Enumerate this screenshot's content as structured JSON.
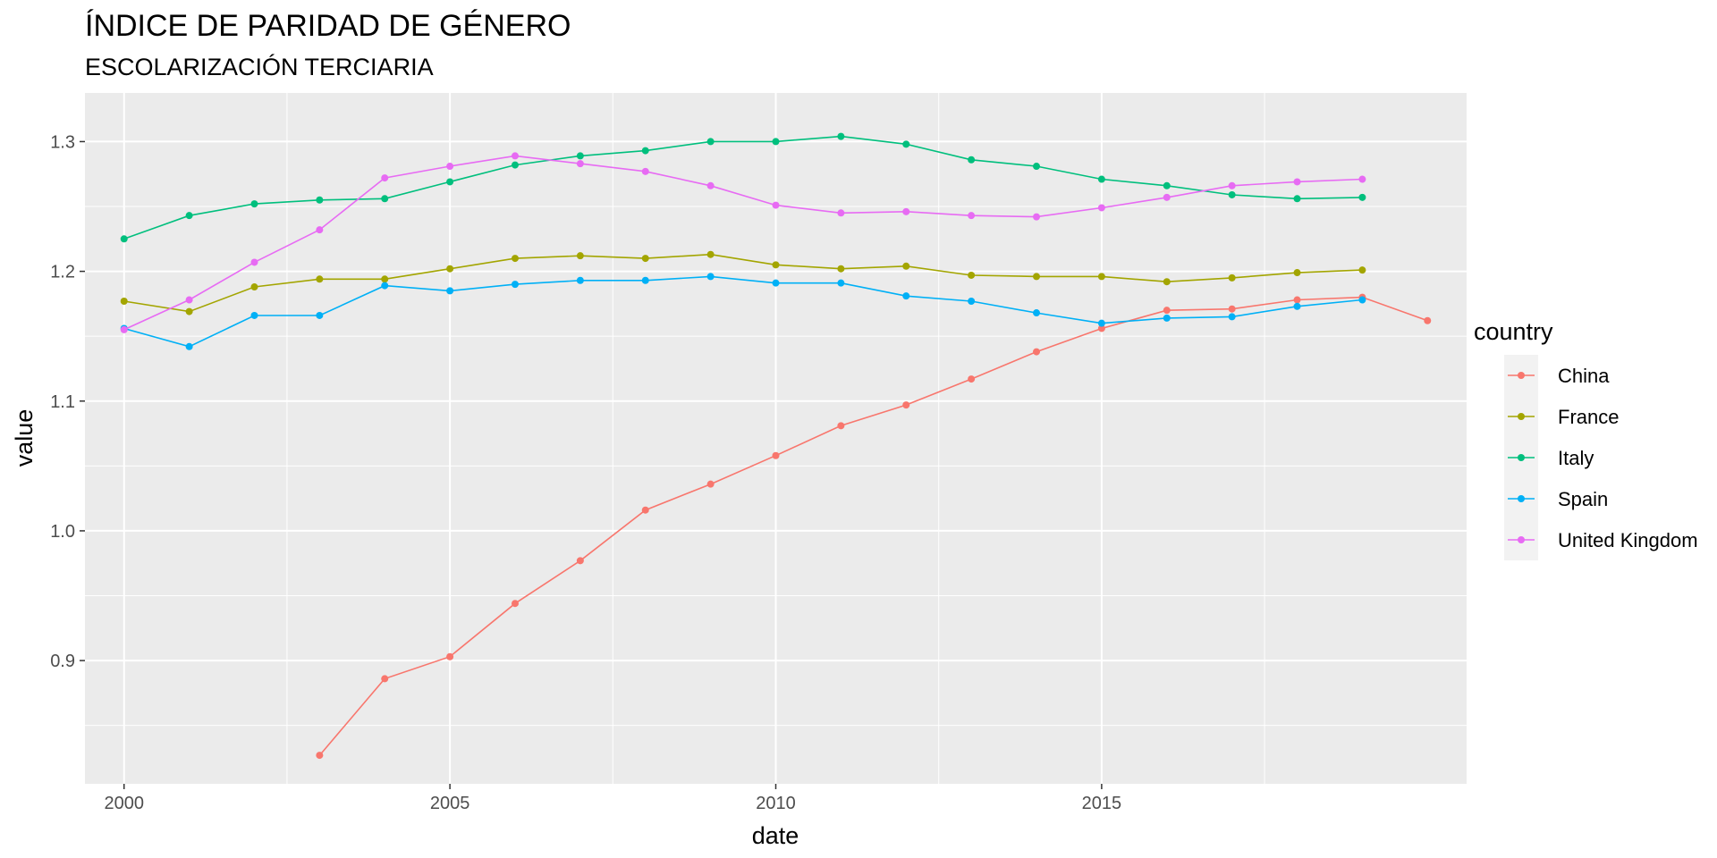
{
  "chart_data": {
    "type": "line",
    "title": "ÍNDICE DE PARIDAD DE GÉNERO",
    "subtitle": "ESCOLARIZACIÓN TERCIARIA",
    "xlabel": "date",
    "ylabel": "value",
    "xlim": [
      1999.4,
      2020.6
    ],
    "ylim": [
      0.805,
      1.3375
    ],
    "x_ticks": [
      2000,
      2005,
      2010,
      2015
    ],
    "x_tick_labels": [
      "2000",
      "2005",
      "2010",
      "2015"
    ],
    "y_ticks": [
      0.9,
      1.0,
      1.1,
      1.2,
      1.3
    ],
    "y_tick_labels": [
      "0.9",
      "1.0",
      "1.1",
      "1.2",
      "1.3"
    ],
    "y_minor_ticks": [
      0.85,
      0.95,
      1.05,
      1.15,
      1.25
    ],
    "x_minor_ticks": [
      2002.5,
      2007.5,
      2012.5,
      2017.5
    ],
    "grid": true,
    "panel_background": "#ebebeb",
    "grid_color": "#ffffff",
    "legend": {
      "title": "country",
      "position": "right"
    },
    "series": [
      {
        "name": "China",
        "color": "#F8766D",
        "x": [
          2003,
          2004,
          2005,
          2006,
          2007,
          2008,
          2009,
          2010,
          2011,
          2012,
          2013,
          2014,
          2015,
          2016,
          2017,
          2018,
          2019,
          2020
        ],
        "values": [
          0.827,
          0.886,
          0.903,
          0.944,
          0.977,
          1.016,
          1.036,
          1.058,
          1.081,
          1.097,
          1.117,
          1.138,
          1.156,
          1.17,
          1.171,
          1.178,
          1.18,
          1.162
        ]
      },
      {
        "name": "France",
        "color": "#A3A500",
        "x": [
          2000,
          2001,
          2002,
          2003,
          2004,
          2005,
          2006,
          2007,
          2008,
          2009,
          2010,
          2011,
          2012,
          2013,
          2014,
          2015,
          2016,
          2017,
          2018,
          2019
        ],
        "values": [
          1.177,
          1.169,
          1.188,
          1.194,
          1.194,
          1.202,
          1.21,
          1.212,
          1.21,
          1.213,
          1.205,
          1.202,
          1.204,
          1.197,
          1.196,
          1.196,
          1.192,
          1.195,
          1.199,
          1.201
        ]
      },
      {
        "name": "Italy",
        "color": "#00BF7D",
        "x": [
          2000,
          2001,
          2002,
          2003,
          2004,
          2005,
          2006,
          2007,
          2008,
          2009,
          2010,
          2011,
          2012,
          2013,
          2014,
          2015,
          2016,
          2017,
          2018,
          2019
        ],
        "values": [
          1.225,
          1.243,
          1.252,
          1.255,
          1.256,
          1.269,
          1.282,
          1.289,
          1.293,
          1.3,
          1.3,
          1.304,
          1.298,
          1.286,
          1.281,
          1.271,
          1.266,
          1.259,
          1.256,
          1.257
        ]
      },
      {
        "name": "Spain",
        "color": "#00B0F6",
        "x": [
          2000,
          2001,
          2002,
          2003,
          2004,
          2005,
          2006,
          2007,
          2008,
          2009,
          2010,
          2011,
          2012,
          2013,
          2014,
          2015,
          2016,
          2017,
          2018,
          2019
        ],
        "values": [
          1.156,
          1.142,
          1.166,
          1.166,
          1.189,
          1.185,
          1.19,
          1.193,
          1.193,
          1.196,
          1.191,
          1.191,
          1.181,
          1.177,
          1.168,
          1.16,
          1.164,
          1.165,
          1.173,
          1.178
        ]
      },
      {
        "name": "United Kingdom",
        "color": "#E76BF3",
        "x": [
          2000,
          2001,
          2002,
          2003,
          2004,
          2005,
          2006,
          2007,
          2008,
          2009,
          2010,
          2011,
          2012,
          2013,
          2014,
          2015,
          2016,
          2017,
          2018,
          2019
        ],
        "values": [
          1.155,
          1.178,
          1.207,
          1.232,
          1.272,
          1.281,
          1.289,
          1.283,
          1.277,
          1.266,
          1.251,
          1.245,
          1.246,
          1.243,
          1.242,
          1.249,
          1.257,
          1.266,
          1.269,
          1.271
        ]
      }
    ]
  }
}
